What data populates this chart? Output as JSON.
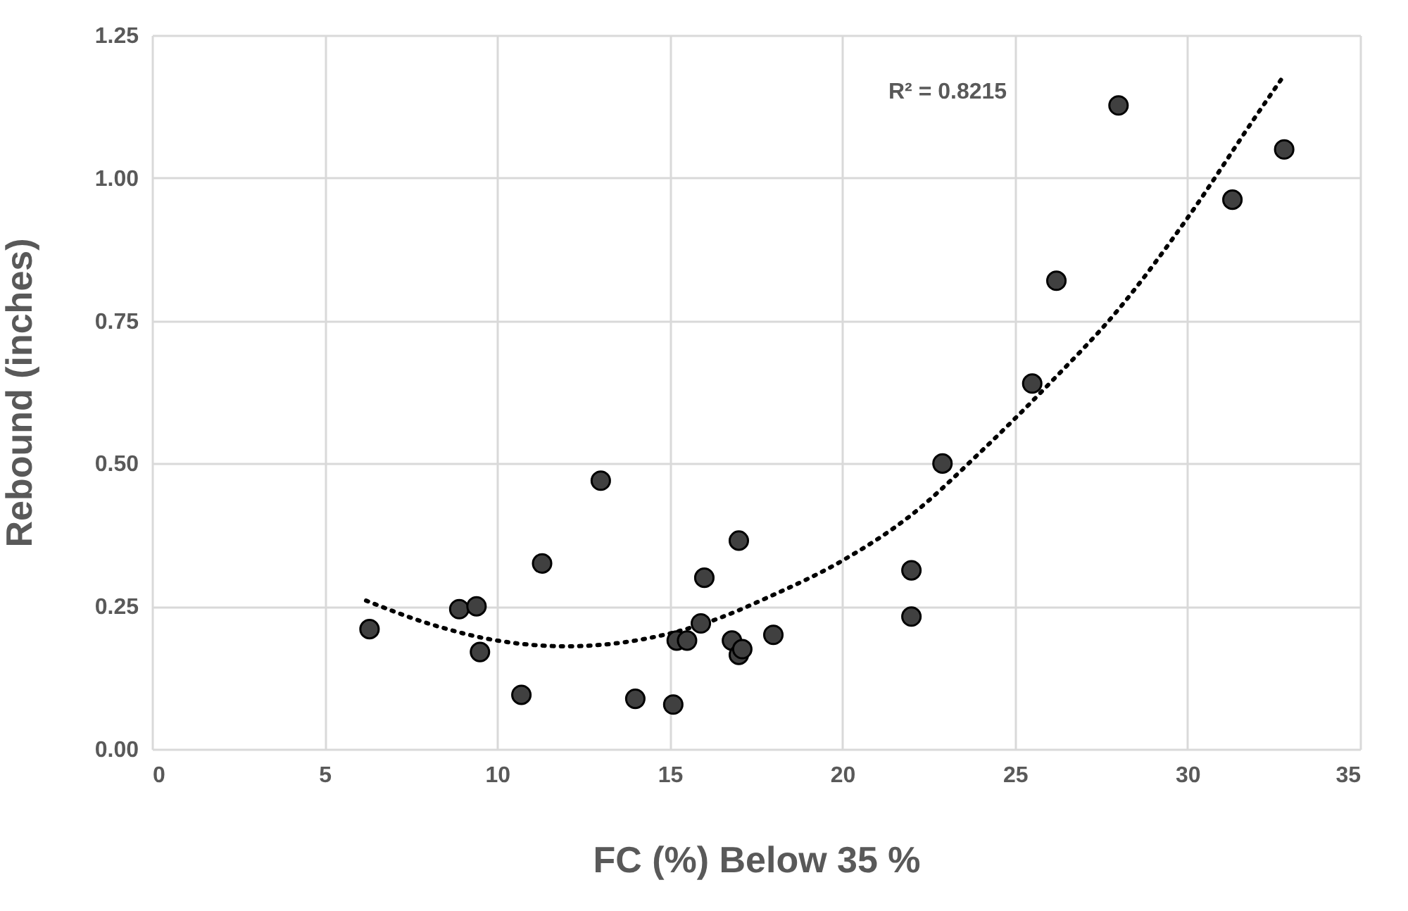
{
  "chart_data": {
    "type": "scatter",
    "xlabel": "FC (%) Below 35 %",
    "ylabel": "Rebound (inches)",
    "xlim": [
      0,
      35
    ],
    "xticks": [
      0,
      5,
      10,
      15,
      20,
      25,
      30,
      35
    ],
    "ylim": [
      0,
      1.25
    ],
    "yticks": [
      {
        "value": 0,
        "label": "0.00"
      },
      {
        "value": 0.25,
        "label": "0.25"
      },
      {
        "value": 0.5,
        "label": "0.50"
      },
      {
        "value": 0.75,
        "label": "0.75"
      },
      {
        "value": 1,
        "label": "1.00"
      },
      {
        "value": 1.25,
        "label": "1.25"
      }
    ],
    "grid": true,
    "marker": "circle",
    "annotations": [
      "R² = 0.8215"
    ],
    "series": [
      {
        "color": "#404040",
        "x": [
          6.3,
          8.9,
          9.4,
          9.5,
          10.7,
          11.3,
          13.0,
          14.0,
          15.1,
          15.2,
          15.5,
          15.9,
          16.0,
          16.8,
          17.0,
          17.1,
          17.0,
          18.0,
          22.0,
          22.0,
          22.9,
          25.5,
          26.2,
          28.0,
          31.3,
          32.8
        ],
        "values": [
          0.21,
          0.245,
          0.25,
          0.17,
          0.095,
          0.325,
          0.47,
          0.088,
          0.078,
          0.19,
          0.19,
          0.22,
          0.3,
          0.19,
          0.165,
          0.175,
          0.365,
          0.2,
          0.232,
          0.313,
          0.5,
          0.64,
          0.82,
          1.127,
          0.962,
          1.05
        ]
      },
      {
        "type": "line",
        "color": "#000000",
        "line_style": "dotted",
        "marker": "none",
        "x": [
          6.2,
          8,
          10,
          12,
          14,
          16,
          18,
          20,
          22,
          24,
          26,
          28,
          30,
          32,
          32.8
        ],
        "values": [
          0.26,
          0.22,
          0.19,
          0.18,
          0.19,
          0.22,
          0.27,
          0.33,
          0.41,
          0.52,
          0.64,
          0.77,
          0.93,
          1.11,
          1.18
        ]
      }
    ]
  }
}
